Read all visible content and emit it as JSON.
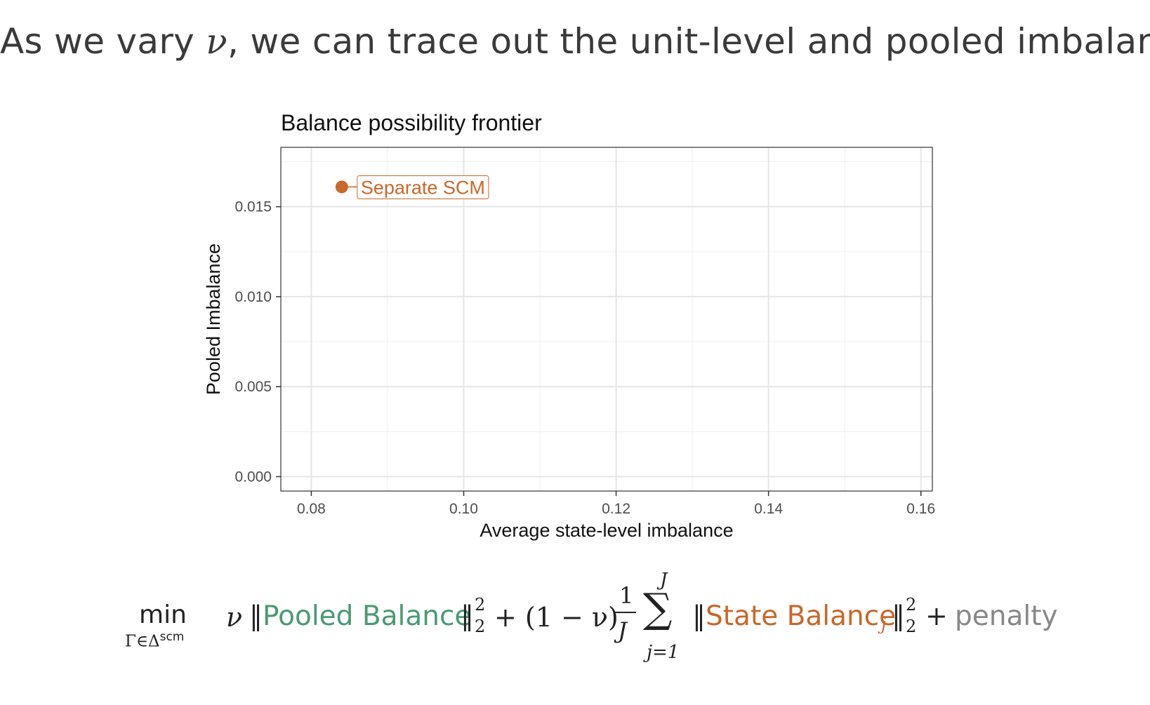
{
  "slide": {
    "title_prefix": "As we vary ",
    "title_symbol": "ν",
    "title_suffix": ", we can trace out the unit-level and pooled imbalance"
  },
  "chart_data": {
    "type": "scatter",
    "title": "Balance possibility frontier",
    "xlabel": "Average state-level imbalance",
    "ylabel": "Pooled Imbalance",
    "xlim": [
      0.076,
      0.1615
    ],
    "ylim": [
      -0.0008,
      0.0183
    ],
    "x_ticks": [
      0.08,
      0.1,
      0.12,
      0.14,
      0.16
    ],
    "x_tick_labels": [
      "0.08",
      "0.10",
      "0.12",
      "0.14",
      "0.16"
    ],
    "y_ticks": [
      0.0,
      0.005,
      0.01,
      0.015
    ],
    "y_tick_labels": [
      "0.000",
      "0.005",
      "0.010",
      "0.015"
    ],
    "grid": true,
    "points": [
      {
        "label": "Separate SCM",
        "x": 0.084,
        "y": 0.0161,
        "color": "#c8682a"
      }
    ]
  },
  "formula": {
    "operator": "min",
    "subscript_base": "Γ∈Δ",
    "subscript_sup": "scm",
    "nu": "ν",
    "norm_open": "‖",
    "pooled_term": "Pooled Balance",
    "norm_close": "‖",
    "exp_2": "2",
    "sub_2": "2",
    "plus_one_minus_nu": "+ (1 − ν)",
    "frac_num": "1",
    "frac_den": "J",
    "sum_symbol": "∑",
    "sum_upper": "J",
    "sum_lower": "j=1",
    "state_term": "State Balance",
    "state_sub": "j",
    "plus": "+",
    "penalty": "penalty"
  }
}
